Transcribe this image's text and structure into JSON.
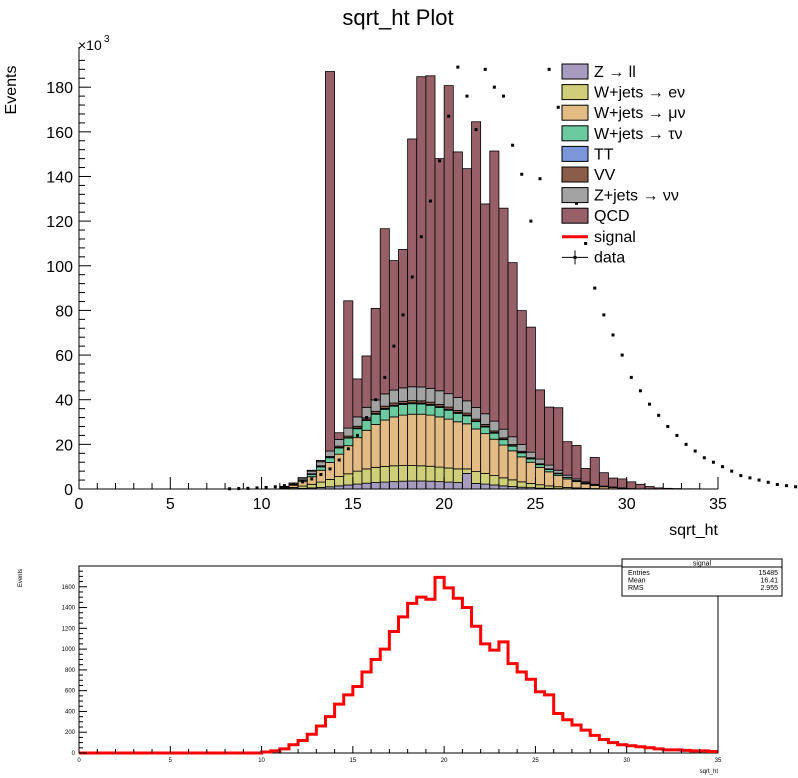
{
  "chart_data": [
    {
      "type": "histogram-stack",
      "title": "sqrt_ht Plot",
      "xlabel": "sqrt_ht",
      "ylabel": "Events",
      "y_exponent_label": "×10",
      "y_exponent_power": "3",
      "xlim": [
        0,
        35
      ],
      "ylim": [
        0,
        198
      ],
      "x_ticks": [
        0,
        5,
        10,
        15,
        20,
        25,
        30,
        35
      ],
      "y_ticks": [
        0,
        20,
        40,
        60,
        80,
        100,
        120,
        140,
        160,
        180
      ],
      "legend_position": "top-right",
      "legend": [
        {
          "label": "Z → ll",
          "type": "fill",
          "color": "#a59cbf"
        },
        {
          "label": "W+jets → eν",
          "type": "fill",
          "color": "#cfcf7a"
        },
        {
          "label": "W+jets → μν",
          "type": "fill",
          "color": "#e3bb85"
        },
        {
          "label": "W+jets → τν",
          "type": "fill",
          "color": "#6ccaa0"
        },
        {
          "label": "TT",
          "type": "fill",
          "color": "#7b97d9"
        },
        {
          "label": "VV",
          "type": "fill",
          "color": "#8c5c4a"
        },
        {
          "label": "Z+jets → νν",
          "type": "fill",
          "color": "#a3a3a3"
        },
        {
          "label": "QCD",
          "type": "fill",
          "color": "#976068"
        },
        {
          "label": "signal",
          "type": "line",
          "color": "#ff0000"
        },
        {
          "label": "data",
          "type": "marker",
          "color": "#000000"
        }
      ],
      "bin_width": 0.5,
      "bin_start": 0,
      "series": [
        {
          "name": "Z → ll",
          "color": "#a59cbf",
          "values": [
            0,
            0,
            0,
            0,
            0,
            0,
            0,
            0,
            0,
            0,
            0,
            0,
            0,
            0,
            0,
            0,
            0,
            0,
            0,
            0,
            0,
            0,
            0.1,
            0.2,
            0.3,
            0.5,
            0.7,
            1.0,
            1.4,
            1.8,
            2.2,
            2.6,
            2.9,
            3.1,
            3.3,
            3.5,
            3.6,
            3.6,
            3.5,
            3.3,
            3.1,
            2.9,
            7.0,
            2.5,
            2.2,
            1.8,
            1.4,
            1.1,
            0.8,
            0.6,
            0.4,
            0.3,
            0.2,
            0.1,
            0.1,
            0,
            0,
            0,
            0,
            0,
            0,
            0,
            0,
            0,
            0,
            0,
            0,
            0,
            0,
            0
          ]
        },
        {
          "name": "W+jets → eν",
          "color": "#cfcf7a",
          "values": [
            0,
            0,
            0,
            0,
            0,
            0,
            0,
            0,
            0,
            0,
            0,
            0,
            0,
            0,
            0,
            0,
            0,
            0,
            0,
            0,
            0,
            0,
            0.2,
            0.5,
            1.0,
            1.6,
            2.4,
            3.3,
            4.2,
            5.0,
            5.8,
            6.4,
            6.8,
            7.0,
            7.1,
            7.0,
            6.9,
            6.8,
            6.7,
            6.5,
            6.3,
            6.1,
            2.0,
            5.3,
            4.8,
            4.2,
            3.6,
            3.0,
            2.4,
            1.9,
            1.5,
            1.1,
            0.8,
            0.6,
            0.4,
            0.3,
            0.2,
            0.1,
            0.1,
            0,
            0,
            0,
            0,
            0,
            0,
            0,
            0,
            0,
            0,
            0
          ]
        },
        {
          "name": "W+jets → μν",
          "color": "#e3bb85",
          "values": [
            0,
            0,
            0,
            0,
            0,
            0,
            0,
            0,
            0,
            0,
            0,
            0,
            0,
            0,
            0,
            0,
            0,
            0,
            0,
            0,
            0,
            0,
            0.4,
            1.0,
            2.0,
            3.4,
            5.3,
            7.6,
            10.0,
            12.6,
            15.0,
            17.3,
            19.2,
            20.8,
            21.9,
            22.6,
            23.0,
            23.1,
            22.9,
            22.5,
            21.9,
            21.1,
            20.2,
            19.1,
            17.8,
            16.3,
            14.7,
            13.0,
            11.2,
            9.5,
            7.8,
            6.3,
            5.0,
            3.8,
            2.8,
            2.0,
            1.4,
            0.9,
            0.6,
            0.4,
            0.2,
            0.1,
            0.1,
            0,
            0,
            0,
            0,
            0,
            0,
            0
          ]
        },
        {
          "name": "W+jets → τν",
          "color": "#6ccaa0",
          "values": [
            0,
            0,
            0,
            0,
            0,
            0,
            0,
            0,
            0,
            0,
            0,
            0,
            0,
            0,
            0,
            0,
            0,
            0,
            0,
            0,
            0,
            0,
            0.1,
            0.3,
            0.6,
            1.0,
            1.5,
            2.1,
            2.8,
            3.4,
            4.0,
            4.4,
            4.6,
            4.8,
            4.8,
            4.8,
            4.7,
            4.6,
            4.4,
            4.2,
            4.0,
            3.8,
            3.6,
            3.3,
            3.0,
            2.7,
            2.4,
            2.1,
            1.8,
            1.5,
            1.2,
            1.0,
            0.8,
            0.6,
            0.4,
            0.3,
            0.2,
            0.1,
            0.1,
            0,
            0,
            0,
            0,
            0,
            0,
            0,
            0,
            0,
            0,
            0
          ]
        },
        {
          "name": "TT",
          "color": "#7b97d9",
          "values": [
            0,
            0,
            0,
            0,
            0,
            0,
            0,
            0,
            0,
            0,
            0,
            0,
            0,
            0,
            0,
            0,
            0,
            0,
            0,
            0,
            0,
            0,
            0,
            0,
            0,
            0,
            0.1,
            0.1,
            0.2,
            0.2,
            0.3,
            0.3,
            0.3,
            0.4,
            0.4,
            0.4,
            0.4,
            0.4,
            0.4,
            0.4,
            0.4,
            0.4,
            0.3,
            0.3,
            0.3,
            0.3,
            0.2,
            0.2,
            0.2,
            0.1,
            0.1,
            0.1,
            0.1,
            0,
            0,
            0,
            0,
            0,
            0,
            0,
            0,
            0,
            0,
            0,
            0,
            0,
            0,
            0,
            0,
            0
          ]
        },
        {
          "name": "VV",
          "color": "#8c5c4a",
          "values": [
            0,
            0,
            0,
            0,
            0,
            0,
            0,
            0,
            0,
            0,
            0,
            0,
            0,
            0,
            0,
            0,
            0,
            0,
            0,
            0,
            0,
            0,
            0.1,
            0.1,
            0.2,
            0.3,
            0.4,
            0.5,
            0.6,
            0.7,
            0.8,
            0.9,
            1.0,
            1.0,
            1.0,
            1.0,
            1.0,
            1.0,
            1.0,
            1.0,
            1.0,
            0.9,
            0.9,
            0.8,
            0.8,
            0.7,
            0.6,
            0.5,
            0.5,
            0.4,
            0.3,
            0.2,
            0.2,
            0.1,
            0.1,
            0.1,
            0,
            0,
            0,
            0,
            0,
            0,
            0,
            0,
            0,
            0,
            0,
            0,
            0,
            0
          ]
        },
        {
          "name": "Z+jets → νν",
          "color": "#a3a3a3",
          "values": [
            0,
            0,
            0,
            0,
            0,
            0,
            0,
            0,
            0,
            0,
            0,
            0,
            0,
            0,
            0,
            0,
            0,
            0,
            0,
            0,
            0,
            0,
            0.2,
            0.5,
            0.8,
            1.2,
            1.8,
            2.4,
            3.0,
            3.6,
            4.2,
            4.7,
            5.1,
            5.5,
            5.8,
            6.0,
            6.2,
            6.2,
            6.2,
            6.1,
            6.0,
            5.8,
            5.5,
            5.2,
            4.8,
            4.4,
            3.9,
            3.5,
            3.0,
            2.5,
            2.1,
            1.7,
            1.3,
            1.0,
            0.7,
            0.5,
            0.3,
            0.2,
            0.1,
            0.1,
            0,
            0,
            0,
            0,
            0,
            0,
            0,
            0,
            0,
            0
          ]
        },
        {
          "name": "QCD",
          "color": "#976068",
          "values": [
            0,
            0,
            0,
            0,
            0,
            0,
            0,
            0,
            0,
            0,
            0,
            0,
            0,
            0,
            0,
            0,
            0,
            0,
            0,
            0,
            0,
            0,
            0.1,
            0.1,
            0.2,
            0.4,
            0.6,
            170.0,
            3.0,
            57.0,
            17.0,
            23.0,
            41.0,
            74.0,
            58.0,
            62.0,
            111.0,
            139.0,
            140.0,
            104.0,
            138.0,
            110.0,
            104.0,
            128.0,
            94.0,
            121.0,
            99.0,
            78.0,
            60.0,
            56.0,
            31.0,
            26.0,
            28.0,
            15.0,
            15.0,
            6.0,
            12.0,
            6.0,
            4.0,
            4.0,
            3.0,
            2.0,
            1.0,
            0.5,
            0.3,
            0.2,
            0.1,
            0.1,
            0,
            0
          ]
        }
      ],
      "data_points": {
        "name": "data",
        "values": [
          0,
          0,
          0,
          0,
          0,
          0,
          0,
          0,
          0,
          0,
          0,
          0,
          0,
          0,
          0,
          0,
          0.1,
          0.2,
          0.3,
          0.5,
          0.7,
          1.0,
          1.5,
          2.2,
          3.2,
          4.5,
          6.5,
          9.0,
          13.0,
          18.0,
          24.0,
          32.0,
          40.0,
          50.0,
          64.0,
          78.0,
          95.0,
          113.0,
          129.0,
          147.0,
          167.0,
          189.0,
          176.0,
          161.0,
          188.0,
          180.0,
          176.0,
          154.0,
          141.0,
          120.0,
          139.0,
          188.0,
          171.0,
          143.0,
          128.0,
          110.0,
          90.0,
          78.0,
          69.0,
          60.0,
          50.0,
          44.0,
          38.0,
          33.0,
          28.0,
          24.0,
          20.0,
          17.0,
          14.0,
          12.0,
          10.0,
          8.0,
          6.0,
          5.0,
          4.0,
          3.0,
          2.0,
          1.5,
          1.0,
          0.8
        ]
      }
    },
    {
      "type": "histogram-line",
      "title": "",
      "xlabel": "sqrt_ht",
      "ylabel": "Events",
      "xlim": [
        0,
        35
      ],
      "ylim": [
        0,
        1800
      ],
      "x_ticks": [
        0,
        5,
        10,
        15,
        20,
        25,
        30,
        35
      ],
      "y_ticks": [
        0,
        200,
        400,
        600,
        800,
        1000,
        1200,
        1400,
        1600
      ],
      "bin_width": 0.5,
      "bin_start": 0,
      "series": [
        {
          "name": "signal",
          "color": "#ff0000",
          "values": [
            0,
            0,
            0,
            0,
            0,
            0,
            0,
            0,
            0,
            0,
            0,
            0,
            0,
            0,
            0,
            0,
            0,
            0,
            0,
            0,
            10,
            20,
            40,
            80,
            120,
            180,
            260,
            350,
            470,
            560,
            640,
            780,
            900,
            1000,
            1170,
            1310,
            1440,
            1500,
            1480,
            1690,
            1590,
            1490,
            1400,
            1220,
            1050,
            990,
            1070,
            860,
            780,
            710,
            590,
            560,
            380,
            320,
            270,
            220,
            170,
            130,
            100,
            80,
            70,
            60,
            50,
            40,
            30,
            30,
            25,
            20,
            20,
            15
          ]
        }
      ],
      "stats_box": {
        "title": "signal",
        "rows": [
          {
            "label": "Entries",
            "value": "15485"
          },
          {
            "label": "Mean",
            "value": "16.41"
          },
          {
            "label": "RMS",
            "value": "2.955"
          }
        ]
      }
    }
  ]
}
